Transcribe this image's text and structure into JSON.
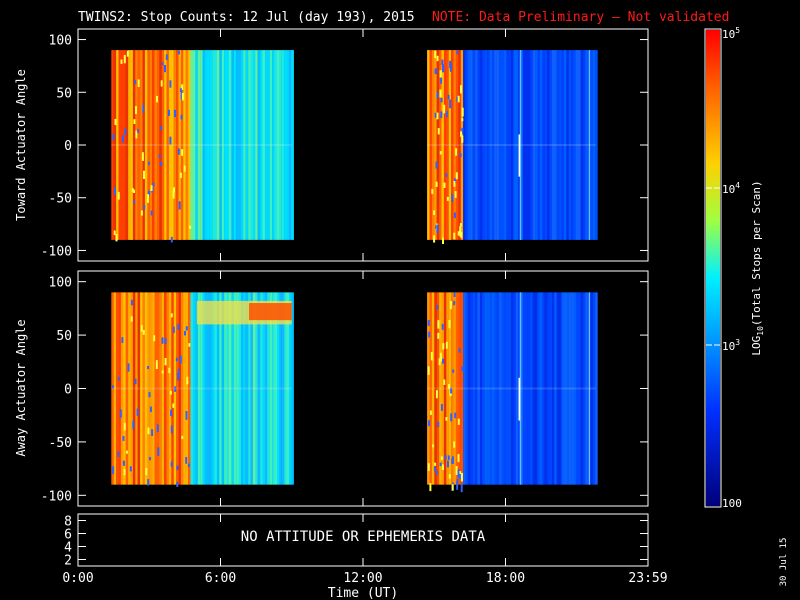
{
  "header": {
    "title": "TWINS2: Stop Counts: 12 Jul (day 193), 2015",
    "note": "NOTE: Data Preliminary — Not validated",
    "note_color": "#ff1a1a"
  },
  "chart_data": [
    {
      "type": "heatmap",
      "ylabel": "Toward Actuator Angle",
      "ylim": [
        -110,
        110
      ],
      "yticks": [
        "100",
        "50",
        "0",
        "-50",
        "-100"
      ],
      "xlim": [
        0,
        24
      ],
      "data_blocks": [
        {
          "x": [
            1.4,
            9.0
          ],
          "y": [
            -90,
            90
          ],
          "description_levels": "high (orange/red) 1.4-4.7h, medium (cyan) 4.7-9h"
        },
        {
          "x": [
            14.7,
            21.8
          ],
          "y": [
            -90,
            90
          ],
          "description_levels": "high (orange/red) 14.7-16.2h, low (blue) 16.2-21.8h"
        }
      ],
      "grid": false
    },
    {
      "type": "heatmap",
      "ylabel": "Away Actuator Angle",
      "ylim": [
        -110,
        110
      ],
      "yticks": [
        "100",
        "50",
        "0",
        "-50",
        "-100"
      ],
      "xlim": [
        0,
        24
      ],
      "data_blocks": [
        {
          "x": [
            1.4,
            9.0
          ],
          "y": [
            -90,
            90
          ],
          "description_levels": "high (orange/red) 1.4-4.7h, medium (cyan/yellow) 4.7-9h, red band near +70 deg around 7-9h"
        },
        {
          "x": [
            14.7,
            21.8
          ],
          "y": [
            -90,
            90
          ],
          "description_levels": "high (orange/red) 14.7-16.2h, low (blue) 16.2-21.8h"
        }
      ],
      "grid": false
    },
    {
      "type": "line",
      "yticks": [
        "8",
        "6",
        "4",
        "2"
      ],
      "ylim": [
        1,
        9
      ],
      "message": "NO ATTITUDE OR EPHEMERIS DATA"
    }
  ],
  "xaxis": {
    "ticks": [
      "0:00",
      "6:00",
      "12:00",
      "18:00",
      "23:59"
    ],
    "tick_hours": [
      0,
      6,
      12,
      18,
      24
    ],
    "label": "Time (UT)"
  },
  "colorbar": {
    "label": "LOG",
    "label_sub": "10",
    "label_rest": "(Total Stops per Scan)",
    "top_label": "10",
    "top_exp": "5",
    "mid_label": "10",
    "mid_exp": "4",
    "low_label": "10",
    "low_exp": "3",
    "bottom_label": "100",
    "colors": [
      "#ff0000",
      "#ff7f00",
      "#ffff00",
      "#7fff7f",
      "#00ffff",
      "#007fff",
      "#0000ff",
      "#00008b"
    ]
  },
  "footer": {
    "date_stamp": "30 Jul 15"
  }
}
